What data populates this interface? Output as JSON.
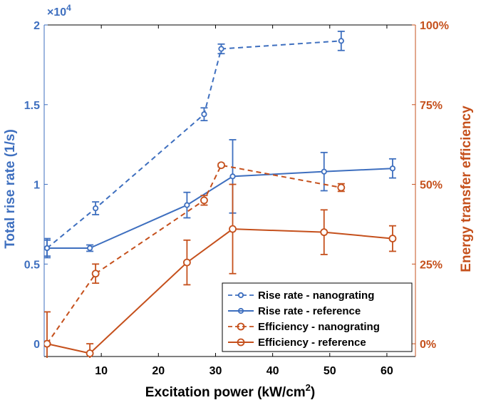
{
  "chart_data": {
    "type": "line",
    "xlabel": "Excitation power (kW/cm",
    "xlabel_superscript": "2",
    "xlabel_suffix": ")",
    "ylabel_left": "Total rise rate (1/s)",
    "ylabel_right": "Energy transfer efficiency",
    "left_axis_multiplier_base": "×10",
    "left_axis_multiplier_exponent": "4",
    "xlim": [
      0,
      65
    ],
    "ylim_left": [
      -0.08,
      2.0
    ],
    "ylim_right": [
      -4,
      100
    ],
    "x_ticks": [
      10,
      20,
      30,
      40,
      50,
      60
    ],
    "x_tick_labels": [
      "10",
      "20",
      "30",
      "40",
      "50",
      "60"
    ],
    "y_left_ticks": [
      0,
      0.5,
      1,
      1.5,
      2
    ],
    "y_left_tick_labels": [
      "0",
      "0.5",
      "1",
      "1.5",
      "2"
    ],
    "y_right_ticks": [
      0,
      25,
      50,
      75,
      100
    ],
    "y_right_tick_labels": [
      "0%",
      "25%",
      "50%",
      "75%",
      "100%"
    ],
    "colors": {
      "blue": "#3E6FBF",
      "orange": "#C5501C"
    },
    "legend_position": "bottom-right",
    "series": [
      {
        "name": "Rise rate - nanograting",
        "axis": "left",
        "color": "#3E6FBF",
        "style": "dashed",
        "x": [
          0.5,
          9,
          28,
          31,
          52
        ],
        "y": [
          0.6,
          0.85,
          1.44,
          1.85,
          1.9
        ],
        "err": [
          0.05,
          0.04,
          0.04,
          0.03,
          0.06
        ]
      },
      {
        "name": "Rise rate - reference",
        "axis": "left",
        "color": "#3E6FBF",
        "style": "solid",
        "x": [
          0.5,
          8,
          25,
          33,
          49,
          61
        ],
        "y": [
          0.6,
          0.6,
          0.87,
          1.05,
          1.08,
          1.1
        ],
        "err": [
          0.06,
          0.02,
          0.08,
          0.23,
          0.12,
          0.06
        ]
      },
      {
        "name": "Efficiency - nanograting",
        "axis": "right",
        "color": "#C5501C",
        "style": "dashed",
        "x": [
          0.5,
          9,
          28,
          31,
          52
        ],
        "y": [
          0,
          22,
          45,
          56,
          49
        ],
        "err": [
          10,
          3,
          1.5,
          0.5,
          1.2
        ]
      },
      {
        "name": "Efficiency - reference",
        "axis": "right",
        "color": "#C5501C",
        "style": "solid",
        "x": [
          0.5,
          8,
          25,
          33,
          49,
          61
        ],
        "y": [
          0,
          -3,
          25.5,
          36,
          35,
          33
        ],
        "err": [
          0,
          3,
          7,
          14,
          7,
          4
        ]
      }
    ]
  }
}
